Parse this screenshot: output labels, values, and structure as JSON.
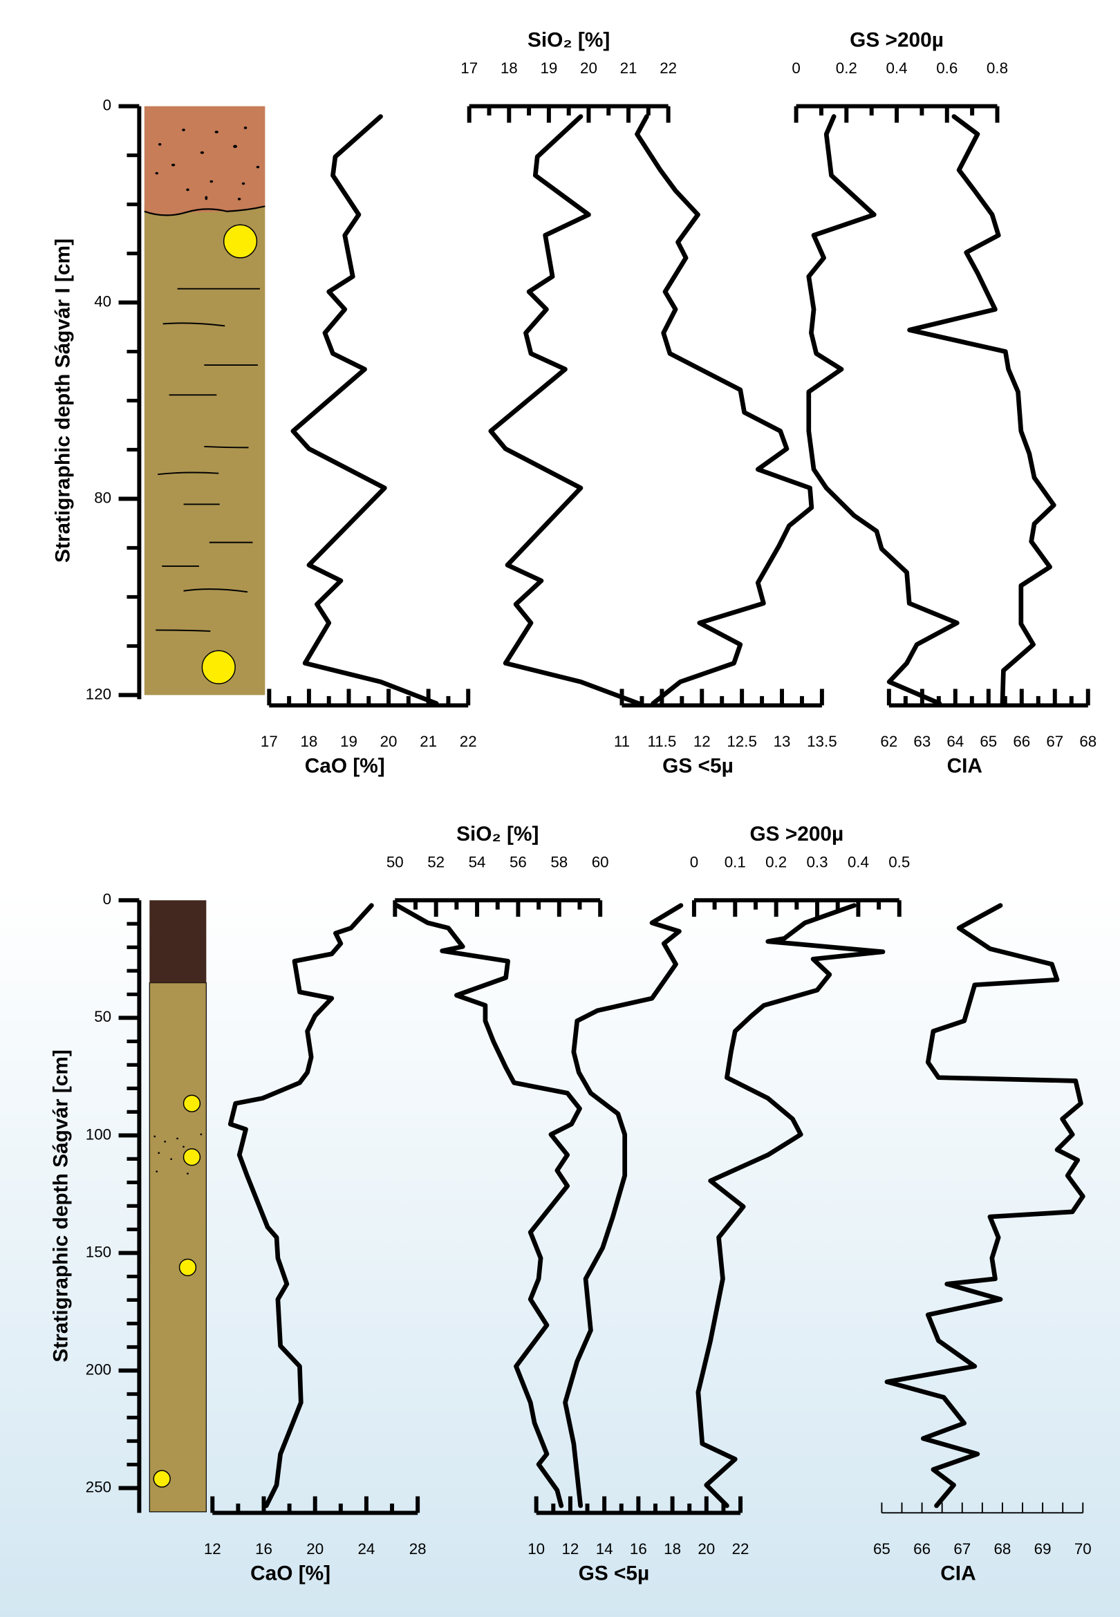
{
  "chart_data": [
    {
      "type": "depth-profile",
      "ylabel": "Stratigraphic depth Ságvár I [cm]",
      "ylim": [
        0,
        120
      ],
      "yticks": [
        0,
        40,
        80,
        120
      ],
      "series": [
        {
          "name": "CaO [%]",
          "axis": "bottom",
          "color": "#000000",
          "xlim": [
            17,
            22
          ],
          "xticks": [
            17,
            18,
            19,
            20,
            21,
            22
          ],
          "depth": [
            2.1,
            10.3,
            14.1,
            22.1,
            26.3,
            34.7,
            37.8,
            41.4,
            46.2,
            50.4,
            53.6,
            66.2,
            69.8,
            77.8,
            93.5,
            96.7,
            101.5,
            105.3,
            113.5,
            117.3,
            121.7
          ],
          "values": [
            19.8,
            18.66,
            18.6,
            19.25,
            18.9,
            19.1,
            18.5,
            18.9,
            18.4,
            18.6,
            19.4,
            17.6,
            18.0,
            19.9,
            18.0,
            18.8,
            18.2,
            18.5,
            17.9,
            19.8,
            21.2
          ]
        },
        {
          "name": "SiO₂ [%]",
          "axis": "top",
          "color": "#000000",
          "xlim": [
            17,
            22
          ],
          "xticks": [
            17,
            18,
            19,
            20,
            21,
            22
          ],
          "depth": [
            2.1,
            10.3,
            14.1,
            22.1,
            26.3,
            34.7,
            37.8,
            41.4,
            46.2,
            50.4,
            53.6,
            66.2,
            69.8,
            77.8,
            93.5,
            96.7,
            101.5,
            105.3,
            113.5,
            117.3,
            121.7
          ],
          "values": [
            19.8,
            18.71,
            18.66,
            20.0,
            18.91,
            19.09,
            18.5,
            18.94,
            18.42,
            18.55,
            19.41,
            17.54,
            17.91,
            19.8,
            17.96,
            18.81,
            18.17,
            18.55,
            17.91,
            19.8,
            21.25
          ]
        },
        {
          "name": "GS <5µ",
          "axis": "bottom",
          "color": "#000000",
          "xlim": [
            11,
            13.5
          ],
          "xticks": [
            11,
            11.5,
            12,
            12.5,
            13,
            13.5
          ],
          "depth": [
            2.1,
            5.7,
            13.0,
            17.2,
            22.1,
            27.7,
            30.9,
            37.8,
            41.4,
            46.2,
            50.4,
            57.8,
            62.4,
            66.2,
            69.8,
            74.0,
            77.8,
            81.8,
            85.5,
            89.7,
            97.1,
            101.3,
            105.3,
            109.7,
            113.5,
            117.3,
            121.7
          ],
          "values": [
            11.31,
            11.19,
            11.48,
            11.67,
            11.95,
            11.7,
            11.8,
            11.54,
            11.67,
            11.52,
            11.6,
            12.48,
            12.53,
            12.98,
            13.06,
            12.7,
            13.35,
            13.37,
            13.09,
            12.96,
            12.7,
            12.77,
            11.97,
            12.48,
            12.4,
            11.73,
            11.39
          ]
        },
        {
          "name": "GS >200µ",
          "axis": "top",
          "color": "#000000",
          "xlim": [
            0,
            0.8
          ],
          "xticks": [
            0,
            0.2,
            0.4,
            0.6,
            0.8
          ],
          "depth": [
            2.1,
            5.7,
            14.1,
            22.1,
            26.3,
            30.9,
            34.7,
            41.4,
            46.2,
            50.4,
            53.6,
            58.2,
            66.2,
            74.0,
            77.8,
            83.4,
            86.6,
            90.2,
            95.0,
            101.3,
            105.3,
            109.7,
            113.5,
            117.3,
            121.7
          ],
          "values": [
            0.15,
            0.12,
            0.14,
            0.31,
            0.07,
            0.11,
            0.05,
            0.07,
            0.06,
            0.08,
            0.18,
            0.05,
            0.05,
            0.07,
            0.12,
            0.23,
            0.32,
            0.34,
            0.44,
            0.45,
            0.64,
            0.48,
            0.44,
            0.37,
            0.57
          ]
        },
        {
          "name": "CIA",
          "axis": "bottom",
          "color": "#000000",
          "xlim": [
            62,
            68
          ],
          "xticks": [
            62,
            63,
            64,
            65,
            66,
            67,
            68
          ],
          "depth": [
            2.1,
            5.7,
            13.0,
            17.2,
            22.1,
            26.3,
            29.8,
            34.0,
            41.4,
            45.6,
            50.0,
            53.6,
            58.2,
            66.2,
            70.8,
            75.7,
            81.3,
            85.1,
            88.7,
            93.9,
            97.7,
            105.5,
            109.7,
            115.0,
            121.7
          ],
          "values": [
            63.96,
            64.67,
            64.11,
            64.58,
            65.11,
            65.3,
            64.33,
            64.67,
            65.2,
            62.62,
            65.51,
            65.6,
            65.89,
            65.98,
            66.23,
            66.38,
            66.97,
            66.38,
            66.29,
            66.85,
            65.98,
            65.98,
            66.35,
            65.45,
            65.42
          ]
        }
      ]
    },
    {
      "type": "depth-profile",
      "ylabel": "Stratigraphic depth Ságvár [cm]",
      "ylim": [
        0,
        260
      ],
      "yticks": [
        0,
        50,
        100,
        150,
        200,
        250
      ],
      "series": [
        {
          "name": "CaO [%]",
          "axis": "bottom",
          "color": "#000000",
          "xlim": [
            12,
            28
          ],
          "xticks": [
            12,
            16,
            20,
            24,
            28
          ],
          "depth": [
            2.2,
            11.8,
            14.0,
            18.4,
            22.8,
            25.9,
            39.0,
            41.7,
            49.1,
            55.7,
            66.7,
            73.2,
            77.6,
            84.2,
            86.4,
            95.2,
            97.4,
            108.3,
            117.1,
            139.0,
            143.4,
            152.2,
            163.2,
            169.7,
            189.5,
            198.2,
            213.6,
            224.6,
            235.5,
            248.7,
            257.5
          ],
          "values": [
            24.4,
            22.8,
            21.6,
            22.0,
            21.3,
            18.4,
            18.8,
            21.3,
            20.0,
            19.4,
            19.7,
            19.4,
            18.8,
            15.9,
            13.8,
            13.4,
            14.6,
            14.1,
            14.7,
            16.3,
            17.0,
            17.1,
            17.8,
            17.1,
            17.3,
            18.8,
            18.9,
            18.1,
            17.3,
            17.0,
            16.2
          ]
        },
        {
          "name": "SiO₂ [%]",
          "axis": "top",
          "color": "#000000",
          "xlim": [
            50,
            60
          ],
          "xticks": [
            50,
            52,
            54,
            56,
            58,
            60
          ],
          "depth": [
            2.2,
            9.6,
            11.8,
            19.7,
            21.5,
            25.9,
            32.9,
            40.4,
            44.7,
            51.3,
            60.1,
            71.1,
            77.6,
            82.0,
            88.6,
            95.2,
            99.6,
            108.3,
            114.9,
            121.5,
            141.2,
            152.2,
            161.0,
            169.7,
            180.7,
            198.2,
            213.6,
            222.4,
            235.5,
            239.9,
            250.9,
            257.5
          ],
          "values": [
            50.1,
            51.6,
            52.6,
            53.3,
            52.3,
            55.5,
            55.4,
            53.0,
            54.4,
            54.4,
            54.8,
            55.4,
            55.8,
            58.4,
            59.0,
            58.6,
            57.6,
            58.4,
            57.9,
            58.4,
            56.6,
            57.1,
            57.0,
            56.6,
            57.4,
            55.9,
            56.6,
            56.8,
            57.4,
            57.0,
            57.9,
            58.1
          ]
        },
        {
          "name": "GS <5µ",
          "axis": "bottom",
          "color": "#000000",
          "xlim": [
            10,
            22
          ],
          "xticks": [
            10,
            12,
            14,
            16,
            18,
            20,
            22
          ],
          "depth": [
            2.2,
            9.6,
            13.2,
            18.4,
            27.2,
            41.7,
            46.9,
            51.3,
            64.5,
            73.2,
            82.0,
            90.8,
            99.6,
            117.1,
            134.6,
            147.8,
            161.0,
            182.9,
            196.1,
            213.6,
            231.1,
            244.3,
            257.5
          ],
          "values": [
            18.5,
            16.8,
            18.4,
            17.5,
            18.2,
            16.8,
            13.6,
            12.4,
            12.2,
            12.5,
            13.2,
            14.8,
            15.2,
            15.2,
            14.5,
            13.9,
            12.9,
            13.2,
            12.4,
            11.7,
            12.2,
            12.4,
            12.6
          ]
        },
        {
          "name": "GS >200µ",
          "axis": "top",
          "color": "#000000",
          "xlim": [
            0,
            0.5
          ],
          "xticks": [
            0,
            0.1,
            0.2,
            0.3,
            0.4,
            0.5
          ],
          "depth": [
            2.2,
            9.6,
            16.2,
            17.5,
            21.9,
            25.0,
            31.6,
            38.2,
            44.7,
            49.1,
            55.7,
            64.5,
            75.4,
            84.2,
            93.0,
            99.6,
            108.3,
            119.3,
            130.3,
            143.4,
            161.0,
            187.3,
            209.2,
            231.1,
            237.7,
            248.7,
            257.5
          ],
          "values": [
            0.39,
            0.27,
            0.22,
            0.18,
            0.46,
            0.29,
            0.33,
            0.3,
            0.17,
            0.14,
            0.1,
            0.09,
            0.08,
            0.18,
            0.24,
            0.26,
            0.18,
            0.04,
            0.12,
            0.06,
            0.07,
            0.04,
            0.01,
            0.02,
            0.1,
            0.03,
            0.08
          ]
        },
        {
          "name": "CIA",
          "axis": "bottom",
          "color": "#000000",
          "xlim": [
            65,
            70
          ],
          "xticks": [
            65,
            66,
            67,
            68,
            69,
            70
          ],
          "depth": [
            2.2,
            11.8,
            20.6,
            27.2,
            33.8,
            36.0,
            51.3,
            55.7,
            68.9,
            75.4,
            76.8,
            86.4,
            93.0,
            99.6,
            106.1,
            110.5,
            117.1,
            125.9,
            132.5,
            134.6,
            143.4,
            152.2,
            161.0,
            163.2,
            169.7,
            176.3,
            187.3,
            198.2,
            204.8,
            211.4,
            222.4,
            228.9,
            235.5,
            242.1,
            248.7,
            257.5
          ],
          "values": [
            67.95,
            66.92,
            67.69,
            69.23,
            69.36,
            67.31,
            67.05,
            66.28,
            66.15,
            66.41,
            69.82,
            69.95,
            69.49,
            69.74,
            69.36,
            69.87,
            69.62,
            70.0,
            69.74,
            67.69,
            67.9,
            67.74,
            67.82,
            66.62,
            67.95,
            66.15,
            66.41,
            67.31,
            65.13,
            66.54,
            67.05,
            66.03,
            67.38,
            66.28,
            66.79,
            66.36
          ]
        }
      ]
    }
  ]
}
